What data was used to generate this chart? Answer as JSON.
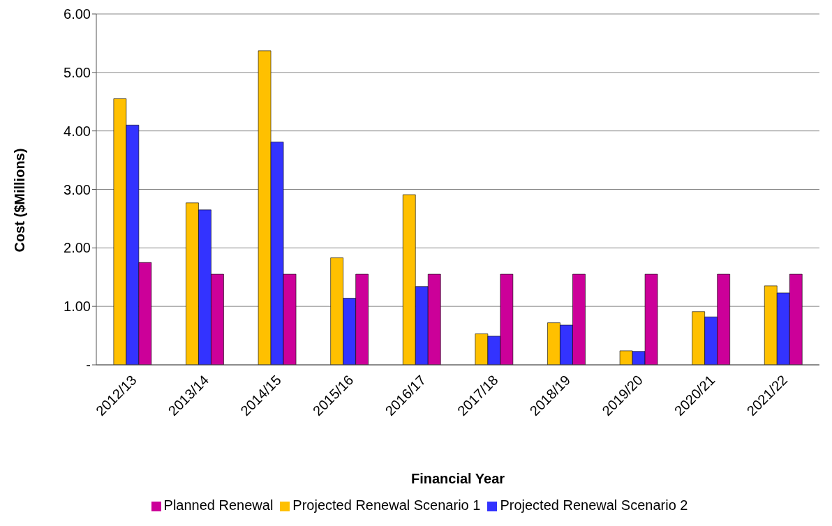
{
  "chart_data": {
    "type": "bar",
    "xlabel": "Financial Year",
    "ylabel": "Cost ($Millions)",
    "categories": [
      "2012/13",
      "2013/14",
      "2014/15",
      "2015/16",
      "2016/17",
      "2017/18",
      "2018/19",
      "2019/20",
      "2020/21",
      "2021/22"
    ],
    "series": [
      {
        "name": "Projected Renewal Scenario 1",
        "color": "#ffc000",
        "values": [
          4.55,
          2.77,
          5.37,
          1.83,
          2.91,
          0.53,
          0.72,
          0.24,
          0.91,
          1.35
        ]
      },
      {
        "name": "Projected Renewal Scenario 2",
        "color": "#3333ff",
        "values": [
          4.1,
          2.65,
          3.81,
          1.14,
          1.34,
          0.49,
          0.68,
          0.23,
          0.82,
          1.23
        ]
      },
      {
        "name": "Planned Renewal",
        "color": "#cc0099",
        "values": [
          1.75,
          1.55,
          1.55,
          1.55,
          1.55,
          1.55,
          1.55,
          1.55,
          1.55,
          1.55
        ]
      }
    ],
    "ylim": [
      0,
      6
    ],
    "yticks": [
      {
        "value": 0,
        "label": "-"
      },
      {
        "value": 1,
        "label": "1.00"
      },
      {
        "value": 2,
        "label": "2.00"
      },
      {
        "value": 3,
        "label": "3.00"
      },
      {
        "value": 4,
        "label": "4.00"
      },
      {
        "value": 5,
        "label": "5.00"
      },
      {
        "value": 6,
        "label": "6.00"
      }
    ],
    "grid": "y",
    "legend": "bottom"
  }
}
